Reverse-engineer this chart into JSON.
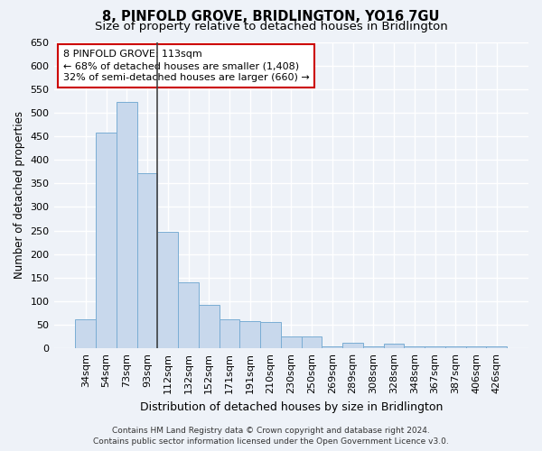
{
  "title": "8, PINFOLD GROVE, BRIDLINGTON, YO16 7GU",
  "subtitle": "Size of property relative to detached houses in Bridlington",
  "xlabel": "Distribution of detached houses by size in Bridlington",
  "ylabel": "Number of detached properties",
  "categories": [
    "34sqm",
    "54sqm",
    "73sqm",
    "93sqm",
    "112sqm",
    "132sqm",
    "152sqm",
    "171sqm",
    "191sqm",
    "210sqm",
    "230sqm",
    "250sqm",
    "269sqm",
    "289sqm",
    "308sqm",
    "328sqm",
    "348sqm",
    "367sqm",
    "387sqm",
    "406sqm",
    "426sqm"
  ],
  "values": [
    62,
    458,
    522,
    372,
    248,
    140,
    93,
    62,
    57,
    55,
    26,
    26,
    5,
    12,
    5,
    10,
    5,
    5,
    5,
    5,
    5
  ],
  "bar_color": "#c8d8ec",
  "bar_edge_color": "#7aadd4",
  "annotation_line1": "8 PINFOLD GROVE: 113sqm",
  "annotation_line2": "← 68% of detached houses are smaller (1,408)",
  "annotation_line3": "32% of semi-detached houses are larger (660) →",
  "annotation_box_facecolor": "#ffffff",
  "annotation_box_edgecolor": "#cc0000",
  "vline_x": 3.5,
  "vline_color": "#444444",
  "ylim": [
    0,
    650
  ],
  "yticks": [
    0,
    50,
    100,
    150,
    200,
    250,
    300,
    350,
    400,
    450,
    500,
    550,
    600,
    650
  ],
  "bg_color": "#eef2f8",
  "grid_color": "#ffffff",
  "title_fontsize": 10.5,
  "subtitle_fontsize": 9.5,
  "ylabel_fontsize": 8.5,
  "xlabel_fontsize": 9,
  "tick_fontsize": 8,
  "annotation_fontsize": 8,
  "footer_fontsize": 6.5,
  "footer_line1": "Contains HM Land Registry data © Crown copyright and database right 2024.",
  "footer_line2": "Contains public sector information licensed under the Open Government Licence v3.0."
}
